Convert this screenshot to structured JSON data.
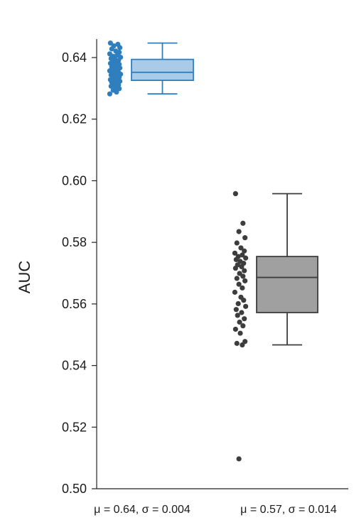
{
  "chart_data": {
    "type": "boxplot",
    "title": "",
    "xlabel": "",
    "ylabel": "AUC",
    "ylim": [
      0.5,
      0.646
    ],
    "yticks": [
      0.5,
      0.52,
      0.54,
      0.56,
      0.58,
      0.6,
      0.62,
      0.64
    ],
    "ytick_labels": [
      "0.50",
      "0.52",
      "0.54",
      "0.56",
      "0.58",
      "0.60",
      "0.62",
      "0.64"
    ],
    "grid": false,
    "legend": "none",
    "categories": [
      "μ = 0.64, σ = 0.004",
      "μ = 0.57, σ = 0.014"
    ],
    "series": [
      {
        "color": "#2f7fbf",
        "box_fill": "#a9cbe8",
        "box": {
          "whisker_low": 0.6282,
          "q1": 0.6326,
          "median": 0.6352,
          "q3": 0.6394,
          "whisker_high": 0.6447
        },
        "points": [
          0.6447,
          0.6443,
          0.6438,
          0.6432,
          0.6428,
          0.6421,
          0.6417,
          0.6412,
          0.6408,
          0.6404,
          0.6401,
          0.6397,
          0.6394,
          0.6391,
          0.6388,
          0.6384,
          0.6381,
          0.6378,
          0.6375,
          0.6372,
          0.6369,
          0.6366,
          0.6363,
          0.636,
          0.6357,
          0.6354,
          0.6352,
          0.6349,
          0.6346,
          0.6343,
          0.6341,
          0.6338,
          0.6336,
          0.6333,
          0.6331,
          0.6328,
          0.6326,
          0.6323,
          0.632,
          0.6317,
          0.6314,
          0.6311,
          0.6307,
          0.6303,
          0.6299,
          0.6294,
          0.6288,
          0.6282
        ]
      },
      {
        "color": "#3d3d3d",
        "box_fill": "#a0a0a0",
        "box": {
          "whisker_low": 0.5467,
          "q1": 0.5572,
          "median": 0.5686,
          "q3": 0.5754,
          "whisker_high": 0.5958
        },
        "points": [
          0.5958,
          0.5862,
          0.5835,
          0.5815,
          0.5798,
          0.5782,
          0.5772,
          0.5765,
          0.5759,
          0.5754,
          0.5749,
          0.5744,
          0.5738,
          0.5732,
          0.5727,
          0.5721,
          0.5716,
          0.5708,
          0.5699,
          0.569,
          0.5683,
          0.5675,
          0.5664,
          0.5652,
          0.5638,
          0.5622,
          0.5612,
          0.5601,
          0.5592,
          0.5582,
          0.5572,
          0.5563,
          0.5552,
          0.5541,
          0.5529,
          0.5518,
          0.5505,
          0.5478,
          0.5472,
          0.5467,
          0.5097
        ]
      }
    ]
  }
}
